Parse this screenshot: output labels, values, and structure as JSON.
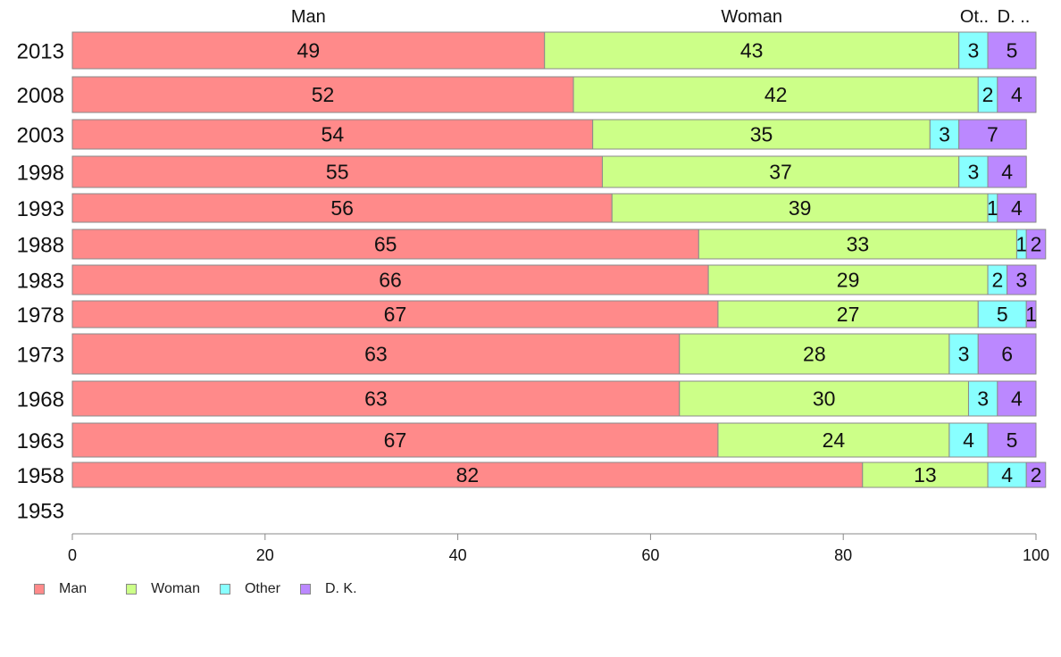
{
  "chart_data": {
    "type": "bar",
    "orientation": "horizontal",
    "stacked": true,
    "categories": [
      "2013",
      "2008",
      "2003",
      "1998",
      "1993",
      "1988",
      "1983",
      "1978",
      "1973",
      "1968",
      "1963",
      "1958",
      "1953"
    ],
    "series": [
      {
        "name": "Man",
        "color": "#ff8a8a",
        "values": [
          49,
          52,
          54,
          55,
          56,
          65,
          66,
          67,
          63,
          63,
          67,
          82,
          null
        ]
      },
      {
        "name": "Woman",
        "color": "#ccff88",
        "values": [
          43,
          42,
          35,
          37,
          39,
          33,
          29,
          27,
          28,
          30,
          24,
          13,
          null
        ]
      },
      {
        "name": "Other",
        "color": "#88ffff",
        "values": [
          3,
          2,
          3,
          3,
          1,
          1,
          2,
          5,
          3,
          3,
          4,
          4,
          null
        ]
      },
      {
        "name": "D. K.",
        "color": "#bb88ff",
        "values": [
          5,
          4,
          7,
          4,
          4,
          2,
          3,
          1,
          6,
          4,
          5,
          2,
          null
        ]
      }
    ],
    "top_labels": [
      "Man",
      "Woman",
      "Ot..",
      "D. .."
    ],
    "xlim": [
      0,
      100
    ],
    "xticks": [
      "0",
      "20",
      "40",
      "60",
      "80",
      "100"
    ],
    "xlabel": "",
    "ylabel": "",
    "grid": false,
    "legend_position": "bottom-left"
  }
}
